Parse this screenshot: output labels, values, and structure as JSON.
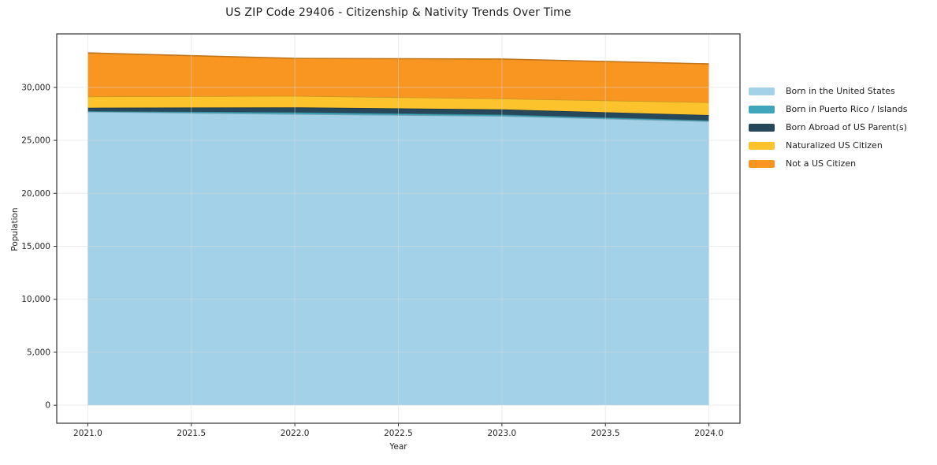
{
  "chart_data": {
    "type": "area",
    "stacked": true,
    "title": "US ZIP Code 29406 - Citizenship & Nativity Trends Over Time",
    "xlabel": "Year",
    "ylabel": "Population",
    "x": [
      2021.0,
      2022.0,
      2023.0,
      2024.0
    ],
    "series": [
      {
        "name": "Born in the United States",
        "color": "#a3d2e8",
        "values": [
          27700,
          27480,
          27300,
          26800
        ]
      },
      {
        "name": "Born in Puerto Rico / Islands",
        "color": "#3fa6bb",
        "values": [
          60,
          170,
          130,
          90
        ]
      },
      {
        "name": "Born Abroad of US Parent(s)",
        "color": "#27485a",
        "values": [
          320,
          470,
          490,
          500
        ]
      },
      {
        "name": "Naturalized US Citizen",
        "color": "#fcc32d",
        "values": [
          1060,
          1080,
          1020,
          1200
        ]
      },
      {
        "name": "Not a US Citizen",
        "color": "#f89621",
        "values": [
          4120,
          3540,
          3740,
          3625
        ]
      }
    ],
    "xlim": [
      2020.85,
      2024.15
    ],
    "ylim": [
      -1700,
      35050
    ],
    "xticks": [
      2021.0,
      2021.5,
      2022.0,
      2022.5,
      2023.0,
      2023.5,
      2024.0
    ],
    "xtick_labels": [
      "2021.0",
      "2021.5",
      "2022.0",
      "2022.5",
      "2023.0",
      "2023.5",
      "2024.0"
    ],
    "yticks": [
      0,
      5000,
      10000,
      15000,
      20000,
      25000,
      30000
    ],
    "ytick_labels": [
      "0",
      "5,000",
      "10,000",
      "15,000",
      "20,000",
      "25,000",
      "30,000"
    ],
    "grid": true,
    "legend_position": "right",
    "style": {
      "background": "#ffffff",
      "axis_color": "#333333",
      "grid_color": "#d9d9d9",
      "text_color": "#262626"
    }
  }
}
